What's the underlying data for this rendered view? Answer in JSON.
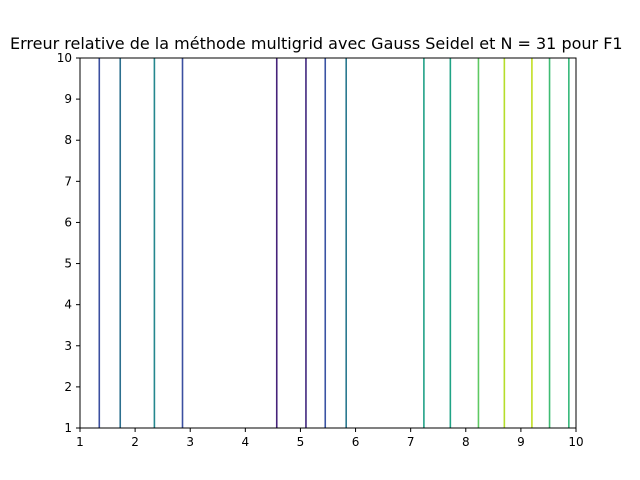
{
  "chart_data": {
    "type": "line",
    "title": "Erreur relative de la méthode multigrid avec Gauss Seidel et N = 31 pour F1",
    "xlabel": "",
    "ylabel": "",
    "xlim": [
      1,
      10
    ],
    "ylim": [
      1,
      10
    ],
    "x_ticks": [
      1,
      2,
      3,
      4,
      5,
      6,
      7,
      8,
      9,
      10
    ],
    "y_ticks": [
      1,
      2,
      3,
      4,
      5,
      6,
      7,
      8,
      9,
      10
    ],
    "grid": false,
    "series": [
      {
        "x": 1.35,
        "color": "#3b4fa0"
      },
      {
        "x": 1.73,
        "color": "#2c6f8e"
      },
      {
        "x": 2.35,
        "color": "#24878e"
      },
      {
        "x": 2.86,
        "color": "#3b4fa0"
      },
      {
        "x": 4.57,
        "color": "#46237a"
      },
      {
        "x": 5.1,
        "color": "#40267e"
      },
      {
        "x": 5.45,
        "color": "#3a53a3"
      },
      {
        "x": 5.83,
        "color": "#2a788e"
      },
      {
        "x": 7.24,
        "color": "#22a187"
      },
      {
        "x": 7.72,
        "color": "#20a386"
      },
      {
        "x": 8.23,
        "color": "#5ec962"
      },
      {
        "x": 8.7,
        "color": "#b5de2b"
      },
      {
        "x": 9.2,
        "color": "#c2df23"
      },
      {
        "x": 9.52,
        "color": "#3fbc73"
      },
      {
        "x": 9.87,
        "color": "#35b779"
      }
    ]
  }
}
